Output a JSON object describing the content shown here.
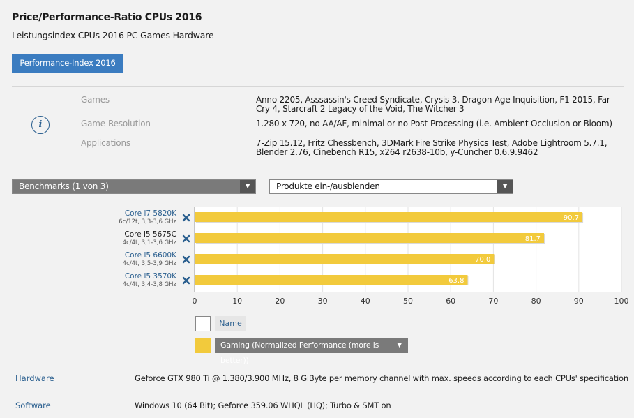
{
  "header": {
    "title": "Price/Performance-Ratio CPUs 2016",
    "subtitle": "Leistungsindex CPUs 2016 PC Games Hardware",
    "index_button": "Performance-Index 2016"
  },
  "info": {
    "icon": "info-icon",
    "rows": [
      {
        "label": "Games",
        "value": "Anno 2205, Asssassin's Creed Syndicate, Crysis 3, Dragon Age Inquisition, F1 2015, Far Cry 4, Starcraft 2 Legacy of the Void, The Witcher 3"
      },
      {
        "label": "Game-Resolution",
        "value": "1.280 x 720, no AA/AF, minimal or no Post-Processing (i.e. Ambient Occlusion or Bloom)"
      },
      {
        "label": "Applications",
        "value": "7-Zip 15.12, Fritz Chessbench, 3DMark Fire Strike Physics Test, Adobe Lightroom 5.7.1, Blender 2.76, Cinebench R15, x264 r2638-10b, y-Cuncher 0.6.9.9462"
      }
    ]
  },
  "controls": {
    "benchmarks_select": "Benchmarks (1 von 3)",
    "products_select": "Produkte ein-/ausblenden"
  },
  "chart_data": {
    "type": "bar",
    "orientation": "horizontal",
    "categories": [
      "Core i7 5820K",
      "Core i5 5675C",
      "Core i5 6600K",
      "Core i5 3570K"
    ],
    "sublabels": [
      "6c/12t, 3,3-3,6 GHz",
      "4c/4t, 3,1-3,6 GHz",
      "4c/4t, 3,5-3,9 GHz",
      "4c/4t, 3,4-3,8 GHz"
    ],
    "series": [
      {
        "name": "Gaming (Normalized Performance (more is better))",
        "values": [
          90.7,
          81.7,
          70.0,
          63.8
        ],
        "color": "#f2ca3c"
      }
    ],
    "value_labels": [
      "90.7",
      "81.7",
      "70.0",
      "63.8"
    ],
    "xlim": [
      0,
      100
    ],
    "xticks": [
      "0",
      "10",
      "20",
      "30",
      "40",
      "50",
      "60",
      "70",
      "80",
      "90",
      "100"
    ],
    "grid": true,
    "link_color": "#2a5f8f",
    "remove_icon": "close-icon"
  },
  "legend": {
    "name_label": "Name",
    "gaming_label": "Gaming (Normalized Performance (more is better))"
  },
  "footer": {
    "hardware_label": "Hardware",
    "hardware_value": "Geforce GTX 980 Ti @ 1.380/3.900 MHz, 8 GiByte per memory channel with max. speeds according to each CPUs' specification",
    "software_label": "Software",
    "software_value": "Windows 10 (64 Bit); Geforce 359.06 WHQL (HQ); Turbo & SMT on"
  }
}
